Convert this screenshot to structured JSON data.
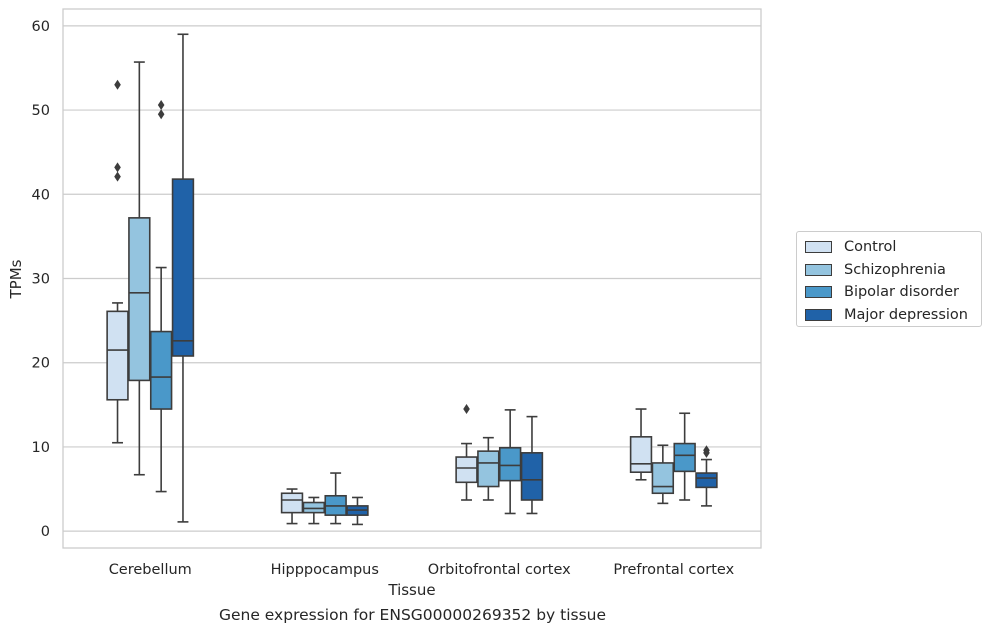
{
  "caption": "Gene expression for ENSG00000269352 by tissue",
  "chart_data": {
    "type": "boxplot",
    "xlabel": "Tissue",
    "ylabel": "TPMs",
    "ylim": [
      -2,
      62
    ],
    "yticks": [
      0,
      10,
      20,
      30,
      40,
      50,
      60
    ],
    "grid": "horizontal",
    "legend_position": "right",
    "categories": [
      "Cerebellum",
      "Hipppocampus",
      "Orbitofrontal cortex",
      "Prefrontal cortex"
    ],
    "series": [
      {
        "name": "Control",
        "color": "#d0e1f2",
        "boxes": [
          {
            "whislo": 10.5,
            "q1": 15.6,
            "med": 21.5,
            "q3": 26.1,
            "whishi": 27.1,
            "fliers": [
              53.0,
              43.2,
              42.1
            ]
          },
          {
            "whislo": 0.9,
            "q1": 2.2,
            "med": 3.7,
            "q3": 4.5,
            "whishi": 5.0,
            "fliers": []
          },
          {
            "whislo": 3.7,
            "q1": 5.8,
            "med": 7.5,
            "q3": 8.8,
            "whishi": 10.4,
            "fliers": [
              14.5
            ]
          },
          {
            "whislo": 6.1,
            "q1": 7.0,
            "med": 8.0,
            "q3": 11.2,
            "whishi": 14.5,
            "fliers": []
          }
        ]
      },
      {
        "name": "Schizophrenia",
        "color": "#94c4df",
        "boxes": [
          {
            "whislo": 6.7,
            "q1": 17.9,
            "med": 28.3,
            "q3": 37.2,
            "whishi": 55.7,
            "fliers": []
          },
          {
            "whislo": 0.9,
            "q1": 2.2,
            "med": 2.7,
            "q3": 3.4,
            "whishi": 4.0,
            "fliers": []
          },
          {
            "whislo": 3.7,
            "q1": 5.3,
            "med": 8.1,
            "q3": 9.5,
            "whishi": 11.1,
            "fliers": []
          },
          {
            "whislo": 3.3,
            "q1": 4.5,
            "med": 5.3,
            "q3": 8.1,
            "whishi": 10.2,
            "fliers": []
          }
        ]
      },
      {
        "name": "Bipolar disorder",
        "color": "#4a98c9",
        "boxes": [
          {
            "whislo": 4.7,
            "q1": 14.5,
            "med": 18.3,
            "q3": 23.7,
            "whishi": 31.3,
            "fliers": [
              50.6,
              49.5
            ]
          },
          {
            "whislo": 0.9,
            "q1": 1.9,
            "med": 3.0,
            "q3": 4.2,
            "whishi": 6.9,
            "fliers": []
          },
          {
            "whislo": 2.1,
            "q1": 6.0,
            "med": 7.8,
            "q3": 9.9,
            "whishi": 14.4,
            "fliers": []
          },
          {
            "whislo": 3.7,
            "q1": 7.1,
            "med": 9.0,
            "q3": 10.4,
            "whishi": 14.0,
            "fliers": []
          }
        ]
      },
      {
        "name": "Major depression",
        "color": "#2062a8",
        "boxes": [
          {
            "whislo": 1.1,
            "q1": 20.8,
            "med": 22.6,
            "q3": 41.8,
            "whishi": 59.0,
            "fliers": []
          },
          {
            "whislo": 0.8,
            "q1": 1.9,
            "med": 2.5,
            "q3": 3.0,
            "whishi": 4.0,
            "fliers": []
          },
          {
            "whislo": 2.1,
            "q1": 3.7,
            "med": 6.1,
            "q3": 9.3,
            "whishi": 13.6,
            "fliers": []
          },
          {
            "whislo": 3.0,
            "q1": 5.2,
            "med": 6.3,
            "q3": 6.9,
            "whishi": 8.5,
            "fliers": [
              9.6,
              9.3
            ]
          }
        ]
      }
    ]
  }
}
